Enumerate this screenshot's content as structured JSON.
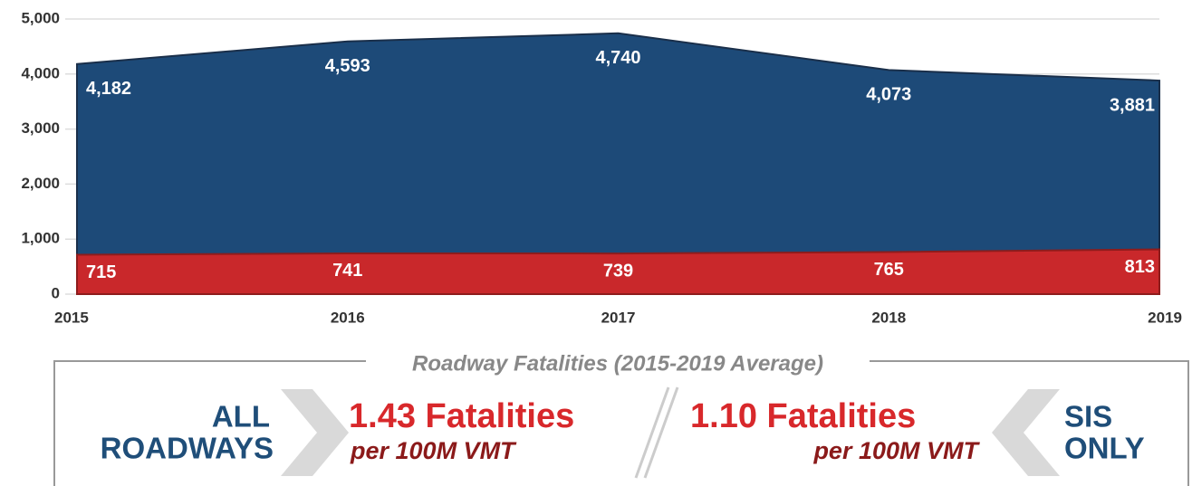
{
  "chart_data": {
    "type": "area",
    "x": [
      2015,
      2016,
      2017,
      2018,
      2019
    ],
    "xlim": [
      2015,
      2019
    ],
    "xticks": [
      2015,
      2016,
      2017,
      2018,
      2019
    ],
    "ylim": [
      0,
      5000
    ],
    "yticks": [
      0,
      {
        "value": 1000,
        "label": "1,000"
      },
      {
        "value": 2000,
        "label": "2,000"
      },
      {
        "value": 3000,
        "label": "3,000"
      },
      {
        "value": 4000,
        "label": "4,000"
      },
      {
        "value": 5000,
        "label": "5,000"
      }
    ],
    "grid": true,
    "series": [
      {
        "color": "#1d4a78",
        "values": [
          4182,
          4593,
          4740,
          4073,
          3881
        ],
        "value_labels": [
          "4,182",
          "4,593",
          "4,740",
          "4,073",
          "3,881"
        ]
      },
      {
        "color": "#c9282b",
        "values": [
          715,
          741,
          739,
          765,
          813
        ]
      }
    ]
  },
  "summary": {
    "title": "Roadway Fatalities (2015-2019 Average)",
    "left": {
      "label_lines": [
        "ALL",
        "ROADWAYS"
      ],
      "rate": "1.43 Fatalities",
      "unit": "per 100M VMT"
    },
    "right": {
      "label_lines": [
        "SIS",
        "ONLY"
      ],
      "rate": "1.10 Fatalities",
      "unit": "per 100M VMT"
    }
  }
}
